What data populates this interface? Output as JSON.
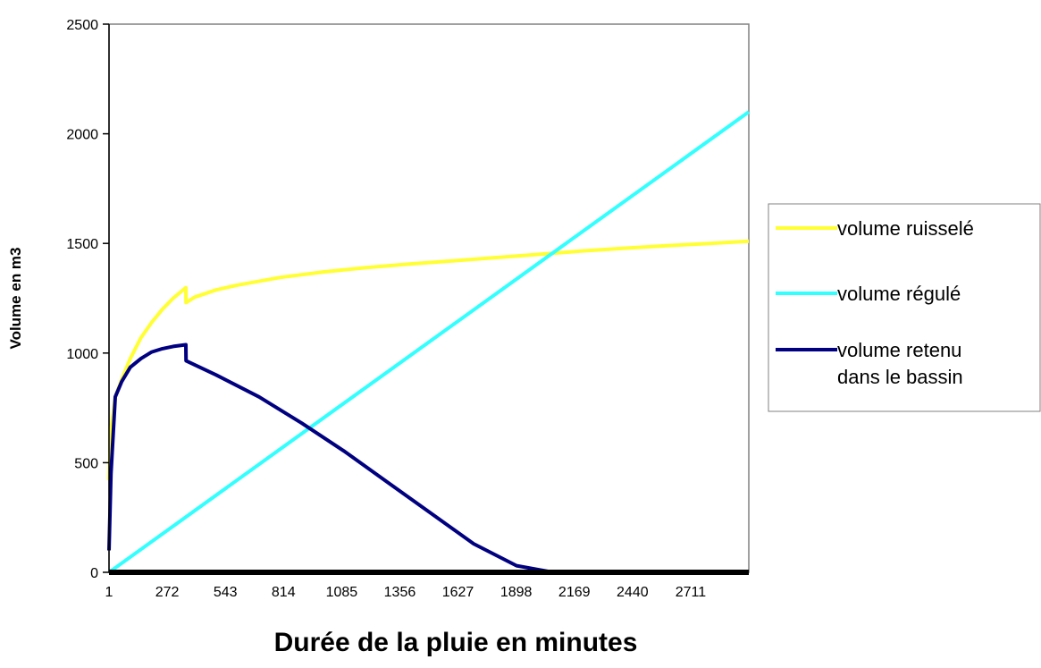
{
  "chart_data": {
    "type": "line",
    "xlabel": "Durée de la pluie en minutes",
    "ylabel": "Volume en m3",
    "xlim": [
      1,
      2982
    ],
    "ylim": [
      0,
      2500
    ],
    "x_tick_labels": [
      "1",
      "272",
      "543",
      "814",
      "1085",
      "1356",
      "1627",
      "1898",
      "2169",
      "2440",
      "2711"
    ],
    "y_ticks": [
      0,
      500,
      1000,
      1500,
      2000,
      2500
    ],
    "y_tick_labels": [
      "0",
      "500",
      "1000",
      "1500",
      "2000",
      "2500"
    ],
    "grid": false,
    "legend_position": "right",
    "series": [
      {
        "name": "volume ruisselé",
        "color": "#ffff33",
        "x": [
          1,
          10,
          30,
          60,
          100,
          150,
          200,
          250,
          300,
          359,
          360,
          400,
          500,
          600,
          800,
          1000,
          1200,
          1400,
          1600,
          1800,
          2000,
          2200,
          2400,
          2600,
          2800,
          2982
        ],
        "y": [
          420,
          650,
          800,
          880,
          975,
          1070,
          1140,
          1200,
          1250,
          1298,
          1230,
          1255,
          1288,
          1310,
          1345,
          1370,
          1390,
          1406,
          1420,
          1435,
          1450,
          1465,
          1478,
          1490,
          1500,
          1510
        ]
      },
      {
        "name": "volume régulé",
        "color": "#33ffff",
        "x": [
          1,
          2982
        ],
        "y": [
          0,
          2100
        ]
      },
      {
        "name": "volume retenu dans le bassin",
        "color": "#000080",
        "x": [
          1,
          10,
          30,
          60,
          100,
          150,
          200,
          250,
          300,
          359,
          360,
          500,
          700,
          900,
          1100,
          1300,
          1500,
          1700,
          1900,
          2070,
          2982
        ],
        "y": [
          100,
          450,
          800,
          870,
          935,
          975,
          1005,
          1020,
          1030,
          1038,
          965,
          900,
          800,
          680,
          550,
          410,
          270,
          130,
          30,
          0,
          0
        ]
      }
    ]
  }
}
